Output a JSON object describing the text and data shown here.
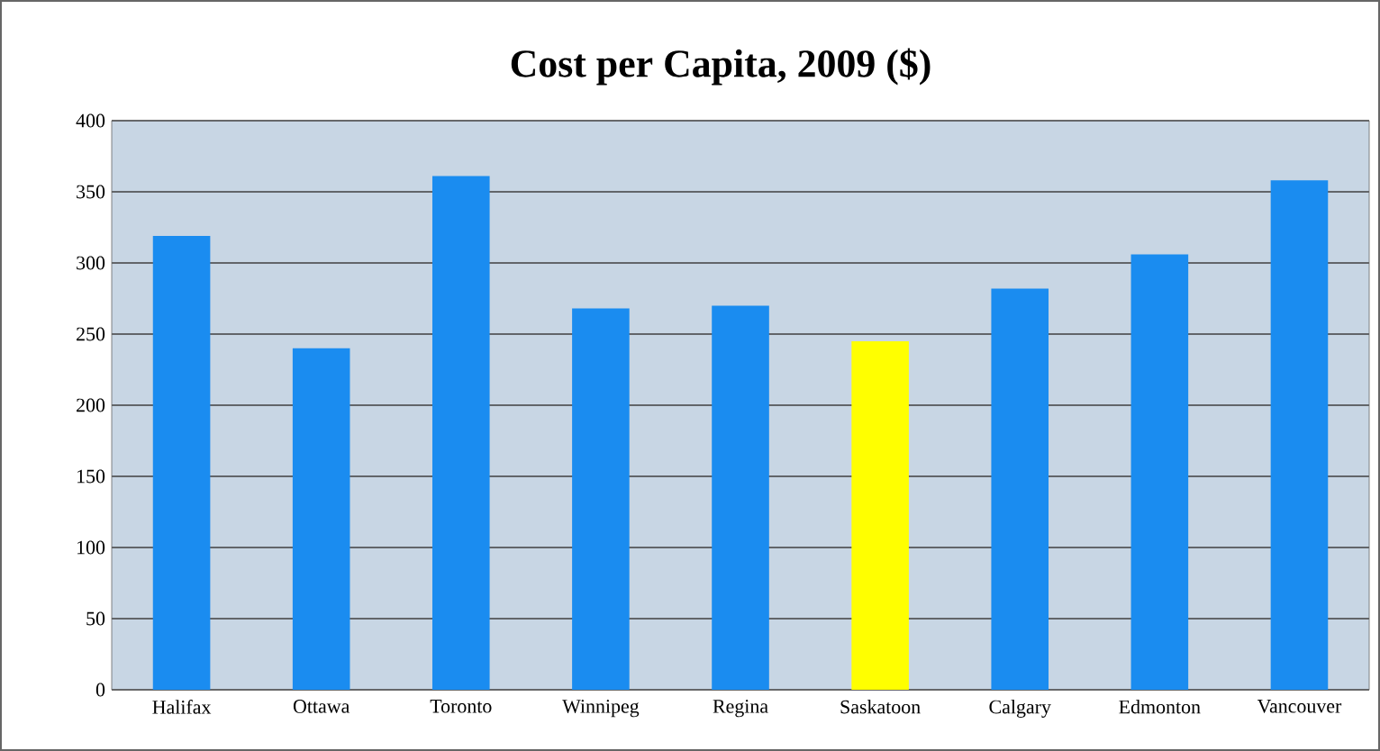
{
  "chart_data": {
    "type": "bar",
    "title": "Cost per Capita, 2009 ($)",
    "categories": [
      "Halifax",
      "Ottawa",
      "Toronto",
      "Winnipeg",
      "Regina",
      "Saskatoon",
      "Calgary",
      "Edmonton",
      "Vancouver"
    ],
    "values": [
      319,
      240,
      361,
      268,
      270,
      245,
      282,
      306,
      358
    ],
    "colors": [
      "#1a8cf0",
      "#1a8cf0",
      "#1a8cf0",
      "#1a8cf0",
      "#1a8cf0",
      "#ffff00",
      "#1a8cf0",
      "#1a8cf0",
      "#1a8cf0"
    ],
    "ylim": [
      0,
      400
    ],
    "yticks": [
      0,
      50,
      100,
      150,
      200,
      250,
      300,
      350,
      400
    ],
    "grid": "y"
  }
}
